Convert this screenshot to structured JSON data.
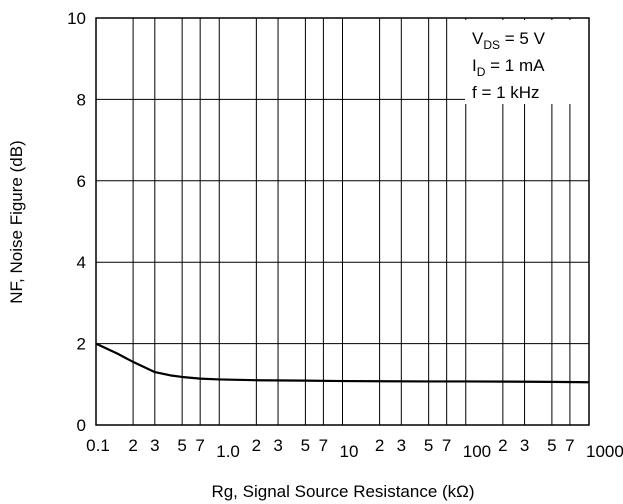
{
  "chart_data": {
    "type": "line",
    "xlabel": "Rg, Signal Source Resistance (kΩ)",
    "ylabel": "NF, Noise Figure (dB)",
    "x_scale": "log",
    "xlim": [
      0.1,
      1000
    ],
    "ylim": [
      0,
      10
    ],
    "grid": true,
    "x_ticks": [
      {
        "value": 0.1,
        "label": "0.1",
        "major": true
      },
      {
        "value": 0.2,
        "label": "2",
        "major": false
      },
      {
        "value": 0.3,
        "label": "3",
        "major": false
      },
      {
        "value": 0.5,
        "label": "5",
        "major": false
      },
      {
        "value": 0.7,
        "label": "7",
        "major": false
      },
      {
        "value": 1,
        "label": "1.0",
        "major": true
      },
      {
        "value": 2,
        "label": "2",
        "major": false
      },
      {
        "value": 3,
        "label": "3",
        "major": false
      },
      {
        "value": 5,
        "label": "5",
        "major": false
      },
      {
        "value": 7,
        "label": "7",
        "major": false
      },
      {
        "value": 10,
        "label": "10",
        "major": true
      },
      {
        "value": 20,
        "label": "2",
        "major": false
      },
      {
        "value": 30,
        "label": "3",
        "major": false
      },
      {
        "value": 50,
        "label": "5",
        "major": false
      },
      {
        "value": 70,
        "label": "7",
        "major": false
      },
      {
        "value": 100,
        "label": "100",
        "major": true
      },
      {
        "value": 200,
        "label": "2",
        "major": false
      },
      {
        "value": 300,
        "label": "3",
        "major": false
      },
      {
        "value": 500,
        "label": "5",
        "major": false
      },
      {
        "value": 700,
        "label": "7",
        "major": false
      },
      {
        "value": 1000,
        "label": "1000",
        "major": true
      }
    ],
    "y_ticks": [
      {
        "value": 0,
        "label": "0"
      },
      {
        "value": 2,
        "label": "2"
      },
      {
        "value": 4,
        "label": "4"
      },
      {
        "value": 6,
        "label": "6"
      },
      {
        "value": 8,
        "label": "8"
      },
      {
        "value": 10,
        "label": "10"
      }
    ],
    "series": [
      {
        "color": "#000000",
        "x": [
          0.1,
          0.15,
          0.2,
          0.3,
          0.4,
          0.5,
          0.7,
          1,
          2,
          5,
          10,
          50,
          100,
          500,
          1000
        ],
        "y": [
          2.0,
          1.75,
          1.55,
          1.3,
          1.22,
          1.18,
          1.14,
          1.12,
          1.1,
          1.09,
          1.08,
          1.07,
          1.07,
          1.06,
          1.05
        ]
      }
    ],
    "annotation": {
      "lines": [
        {
          "main": "V",
          "sub": "DS",
          "rest": " = 5 V"
        },
        {
          "main": "I",
          "sub": "D",
          "rest": " = 1 mA"
        },
        {
          "main": "f = 1 kHz",
          "sub": "",
          "rest": ""
        }
      ]
    }
  }
}
